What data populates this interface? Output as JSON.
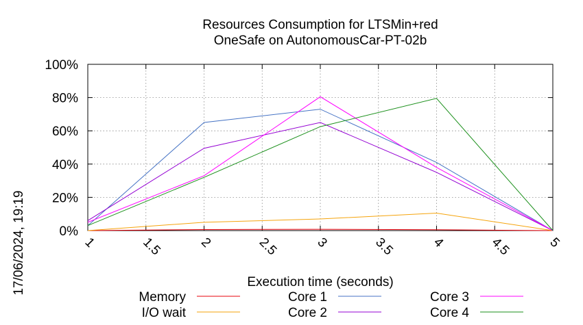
{
  "chart_data": {
    "type": "line",
    "title_lines": [
      "Resources Consumption for LTSMin+red",
      "OneSafe on AutonomousCar-PT-02b"
    ],
    "xlabel": "Execution time (seconds)",
    "ylabel": "",
    "side_label": "17/06/2024, 19:19",
    "xlim": [
      1,
      5
    ],
    "ylim": [
      0,
      100
    ],
    "x_ticks": [
      1,
      1.5,
      2,
      2.5,
      3,
      3.5,
      4,
      4.5,
      5
    ],
    "x_tick_labels": [
      "1",
      "1.5",
      "2",
      "2.5",
      "3",
      "3.5",
      "4",
      "4.5",
      "5"
    ],
    "y_ticks": [
      0,
      20,
      40,
      60,
      80,
      100
    ],
    "y_tick_labels": [
      "0%",
      "20%",
      "40%",
      "60%",
      "80%",
      "100%"
    ],
    "grid": true,
    "legend_position": "bottom",
    "x": [
      1,
      2,
      3,
      4,
      5
    ],
    "series": [
      {
        "name": "Memory",
        "color": "#e8000b",
        "values": [
          0,
          0.6,
          0.8,
          0.5,
          0
        ]
      },
      {
        "name": "I/O wait",
        "color": "#f5a30a",
        "values": [
          0,
          5,
          7,
          10.5,
          0
        ]
      },
      {
        "name": "Core 1",
        "color": "#4472c4",
        "values": [
          3,
          65,
          73,
          41,
          0
        ]
      },
      {
        "name": "Core 2",
        "color": "#9400d3",
        "values": [
          6,
          49.5,
          65,
          35,
          0
        ]
      },
      {
        "name": "Core 3",
        "color": "#ff00ff",
        "values": [
          5,
          33,
          80.5,
          38,
          0
        ]
      },
      {
        "name": "Core 4",
        "color": "#1a8f1a",
        "values": [
          3,
          32,
          62.5,
          79.5,
          0
        ]
      }
    ]
  }
}
